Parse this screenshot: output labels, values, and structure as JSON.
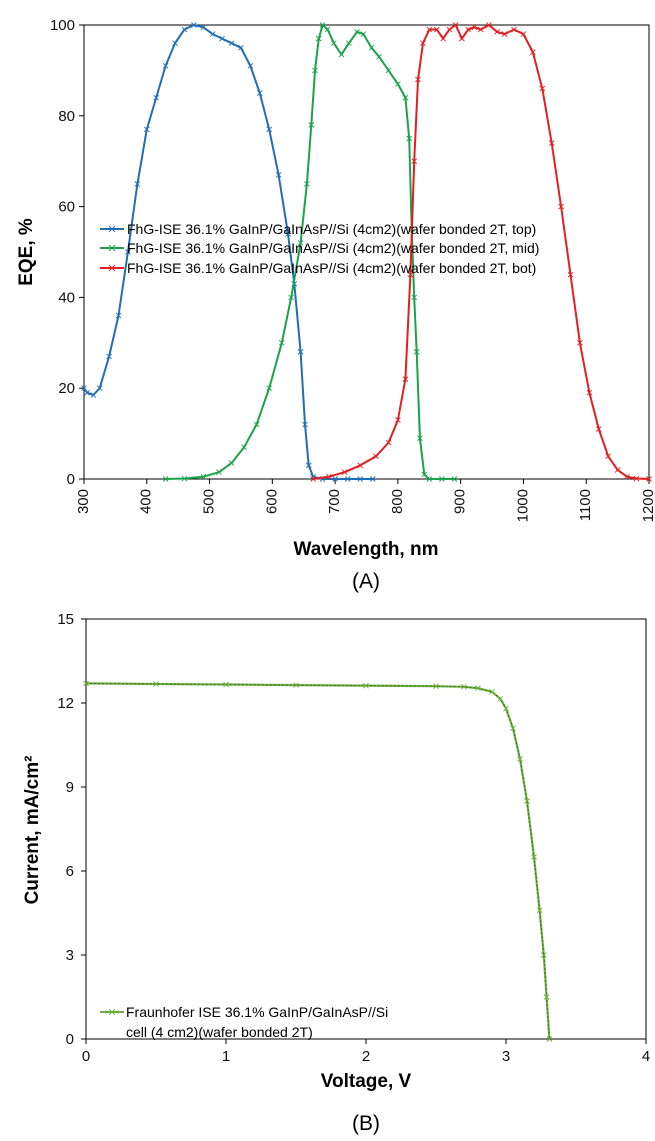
{
  "chart_data": [
    {
      "type": "line",
      "panel_label": "(A)",
      "xlabel": "Wavelength, nm",
      "ylabel": "EQE, %",
      "xlim": [
        300,
        1200
      ],
      "ylim": [
        0,
        100
      ],
      "x_ticks": [
        "300",
        "400",
        "500",
        "600",
        "700",
        "800",
        "900",
        "1000",
        "1100",
        "1200"
      ],
      "y_ticks": [
        "0",
        "20",
        "40",
        "60",
        "80",
        "100"
      ],
      "grid": false,
      "legend_position": "center-left",
      "series": [
        {
          "name": "FhG-ISE 36.1% GaInP/GaInAsP//Si (4cm2)(wafer bonded 2T, top)",
          "color": "#1f6fb8",
          "points": [
            [
              300,
              20
            ],
            [
              305,
              19
            ],
            [
              315,
              18.5
            ],
            [
              325,
              20
            ],
            [
              340,
              27
            ],
            [
              355,
              36
            ],
            [
              370,
              50
            ],
            [
              385,
              65
            ],
            [
              400,
              77
            ],
            [
              415,
              84
            ],
            [
              430,
              91
            ],
            [
              445,
              96
            ],
            [
              460,
              99
            ],
            [
              475,
              100
            ],
            [
              490,
              99.5
            ],
            [
              505,
              98
            ],
            [
              520,
              97
            ],
            [
              535,
              96
            ],
            [
              550,
              95
            ],
            [
              565,
              91
            ],
            [
              580,
              85
            ],
            [
              595,
              77
            ],
            [
              610,
              67
            ],
            [
              625,
              54
            ],
            [
              635,
              43
            ],
            [
              645,
              28
            ],
            [
              652,
              12
            ],
            [
              658,
              3
            ],
            [
              665,
              0.5
            ],
            [
              680,
              0
            ],
            [
              700,
              0
            ],
            [
              720,
              0
            ],
            [
              740,
              0
            ],
            [
              760,
              0
            ]
          ]
        },
        {
          "name": "FhG-ISE 36.1% GaInP/GaInAsP//Si (4cm2)(wafer bonded 2T, mid)",
          "color": "#1aa34a",
          "points": [
            [
              430,
              0
            ],
            [
              460,
              0.1
            ],
            [
              490,
              0.5
            ],
            [
              515,
              1.5
            ],
            [
              535,
              3.5
            ],
            [
              555,
              7
            ],
            [
              575,
              12
            ],
            [
              595,
              20
            ],
            [
              615,
              30
            ],
            [
              630,
              40
            ],
            [
              645,
              52
            ],
            [
              655,
              65
            ],
            [
              662,
              78
            ],
            [
              668,
              90
            ],
            [
              674,
              97
            ],
            [
              680,
              100
            ],
            [
              688,
              99
            ],
            [
              698,
              96
            ],
            [
              710,
              93.5
            ],
            [
              722,
              96
            ],
            [
              735,
              98.5
            ],
            [
              745,
              98
            ],
            [
              758,
              95
            ],
            [
              770,
              93
            ],
            [
              785,
              90
            ],
            [
              800,
              87
            ],
            [
              812,
              84
            ],
            [
              818,
              75
            ],
            [
              822,
              55
            ],
            [
              826,
              40
            ],
            [
              830,
              28
            ],
            [
              835,
              9
            ],
            [
              842,
              1
            ],
            [
              850,
              0
            ],
            [
              870,
              0
            ],
            [
              890,
              0
            ]
          ]
        },
        {
          "name": "FhG-ISE 36.1% GaInP/GaInAsP//Si (4cm2)(wafer bonded 2T, bot)",
          "color": "#e31f1f",
          "points": [
            [
              665,
              0
            ],
            [
              690,
              0.5
            ],
            [
              715,
              1.5
            ],
            [
              740,
              3
            ],
            [
              765,
              5
            ],
            [
              785,
              8
            ],
            [
              800,
              13
            ],
            [
              812,
              22
            ],
            [
              820,
              45
            ],
            [
              826,
              70
            ],
            [
              832,
              88
            ],
            [
              840,
              96
            ],
            [
              850,
              99
            ],
            [
              862,
              99
            ],
            [
              872,
              97
            ],
            [
              882,
              99
            ],
            [
              892,
              100
            ],
            [
              902,
              97
            ],
            [
              912,
              99
            ],
            [
              922,
              99.5
            ],
            [
              932,
              99
            ],
            [
              945,
              100
            ],
            [
              958,
              98.5
            ],
            [
              970,
              98
            ],
            [
              985,
              99
            ],
            [
              1000,
              98
            ],
            [
              1015,
              94
            ],
            [
              1030,
              86
            ],
            [
              1045,
              74
            ],
            [
              1060,
              60
            ],
            [
              1075,
              45
            ],
            [
              1090,
              30
            ],
            [
              1105,
              19
            ],
            [
              1120,
              11
            ],
            [
              1135,
              5
            ],
            [
              1150,
              2
            ],
            [
              1165,
              0.5
            ],
            [
              1180,
              0.1
            ],
            [
              1200,
              0
            ]
          ]
        }
      ]
    },
    {
      "type": "line",
      "panel_label": "(B)",
      "xlabel": "Voltage, V",
      "ylabel": "Current, mA/cm²",
      "xlim": [
        0,
        4
      ],
      "ylim": [
        0,
        15
      ],
      "x_ticks": [
        "0",
        "1",
        "2",
        "3",
        "4"
      ],
      "y_ticks": [
        "0",
        "3",
        "6",
        "9",
        "12",
        "15"
      ],
      "grid": false,
      "legend_position": "bottom-left",
      "series": [
        {
          "name": "Fraunhofer ISE 36.1% GaInP/GaInAsP//Si cell (4 cm2)(wafer bonded 2T)",
          "legend_lines": [
            "Fraunhofer ISE 36.1% GaInP/GaInAsP//Si",
            "cell (4 cm2)(wafer bonded 2T)"
          ],
          "color": "#6ab03a",
          "points": [
            [
              0,
              12.7
            ],
            [
              0.5,
              12.68
            ],
            [
              1.0,
              12.66
            ],
            [
              1.5,
              12.64
            ],
            [
              2.0,
              12.62
            ],
            [
              2.5,
              12.6
            ],
            [
              2.7,
              12.58
            ],
            [
              2.8,
              12.53
            ],
            [
              2.9,
              12.4
            ],
            [
              2.96,
              12.15
            ],
            [
              3.0,
              11.8
            ],
            [
              3.05,
              11.1
            ],
            [
              3.1,
              10.0
            ],
            [
              3.15,
              8.5
            ],
            [
              3.2,
              6.5
            ],
            [
              3.24,
              4.6
            ],
            [
              3.27,
              3.0
            ],
            [
              3.29,
              1.5
            ],
            [
              3.31,
              0
            ]
          ]
        }
      ]
    }
  ]
}
